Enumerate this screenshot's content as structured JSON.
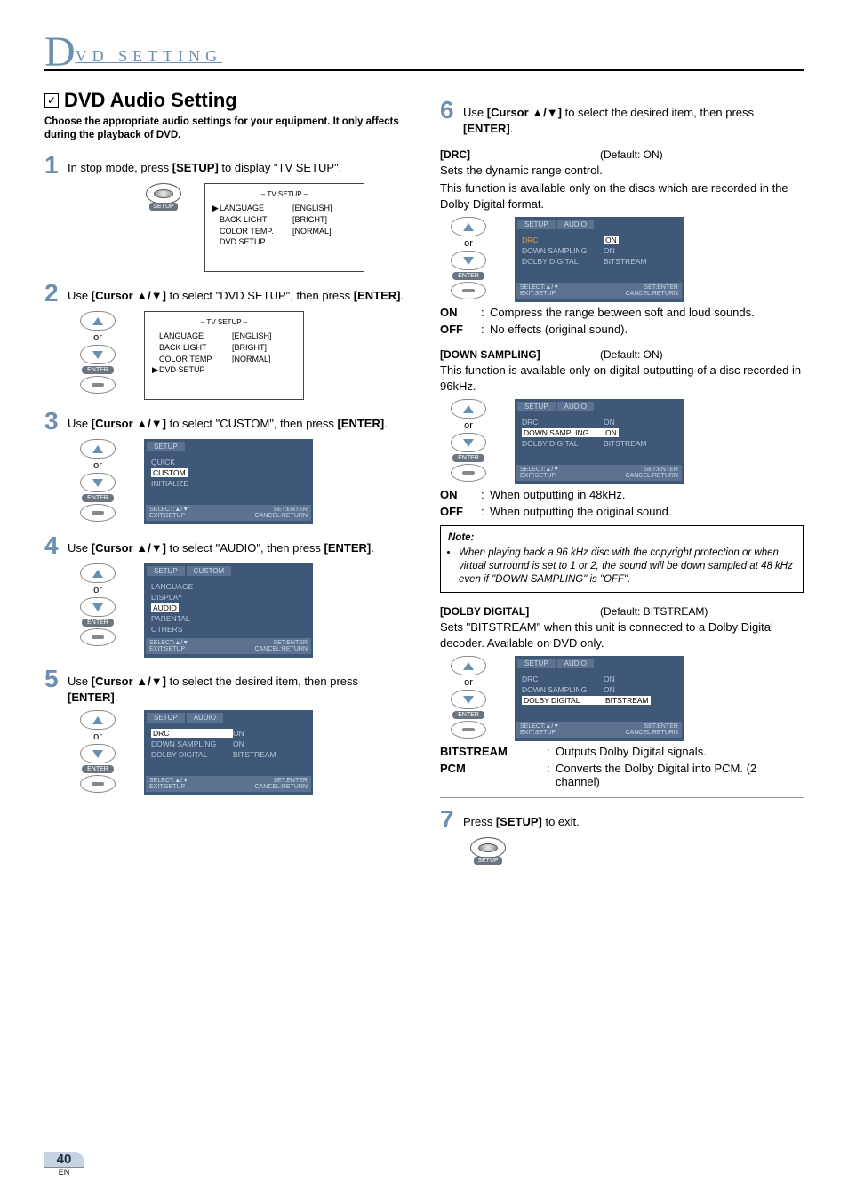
{
  "header": {
    "big_letter": "D",
    "rest": "VD  SETTING"
  },
  "left": {
    "checkbox_glyph": "✓",
    "title": "DVD Audio Setting",
    "subtitle": "Choose the appropriate audio settings for your equipment. It only affects during the playback of DVD.",
    "step1": {
      "n": "1",
      "text_a": "In stop mode, press ",
      "text_b": "[SETUP]",
      "text_c": " to display \"TV SETUP\".",
      "setup_label": "SETUP",
      "screen_title": "–  TV SETUP  –",
      "rows": [
        {
          "ptr": "▶",
          "lbl": "LANGUAGE",
          "val": "[ENGLISH]"
        },
        {
          "ptr": "",
          "lbl": "BACK LIGHT",
          "val": "[BRIGHT]"
        },
        {
          "ptr": "",
          "lbl": "COLOR TEMP.",
          "val": "[NORMAL]"
        },
        {
          "ptr": "",
          "lbl": "DVD SETUP",
          "val": ""
        }
      ]
    },
    "step2": {
      "n": "2",
      "text_a": "Use ",
      "text_b": "[Cursor ▲/▼]",
      "text_c": " to select \"DVD SETUP\", then press ",
      "text_d": "[ENTER]",
      "text_e": ".",
      "or": "or",
      "enter": "ENTER",
      "screen_title": "–  TV SETUP  –",
      "rows": [
        {
          "ptr": "",
          "lbl": "LANGUAGE",
          "val": "[ENGLISH]"
        },
        {
          "ptr": "",
          "lbl": "BACK LIGHT",
          "val": "[BRIGHT]"
        },
        {
          "ptr": "",
          "lbl": "COLOR TEMP.",
          "val": "[NORMAL]"
        },
        {
          "ptr": "▶",
          "lbl": "DVD SETUP",
          "val": ""
        }
      ]
    },
    "step3": {
      "n": "3",
      "text_a": "Use ",
      "text_b": "[Cursor ▲/▼]",
      "text_c": " to select \"CUSTOM\", then press ",
      "text_d": "[ENTER]",
      "text_e": ".",
      "tab": "SETUP",
      "items": [
        "QUICK",
        "CUSTOM",
        "INITIALIZE"
      ],
      "sel_index": 1,
      "footer_l1": "SELECT:▲/▼",
      "footer_r1": "SET:ENTER",
      "footer_l2": "EXIT:SETUP",
      "footer_r2": "CANCEL:RETURN"
    },
    "step4": {
      "n": "4",
      "text_a": "Use ",
      "text_b": "[Cursor ▲/▼]",
      "text_c": " to select \"AUDIO\", then press ",
      "text_d": "[ENTER]",
      "text_e": ".",
      "tab1": "SETUP",
      "tab2": "CUSTOM",
      "items": [
        "LANGUAGE",
        "DISPLAY",
        "AUDIO",
        "PARENTAL",
        "OTHERS"
      ],
      "sel_index": 2
    },
    "step5": {
      "n": "5",
      "text_a": "Use ",
      "text_b": "[Cursor ▲/▼]",
      "text_c": " to select the desired item, then press ",
      "text_d": "[ENTER]",
      "text_e": ".",
      "tab1": "SETUP",
      "tab2": "AUDIO",
      "items": [
        {
          "lbl": "DRC",
          "val": "ON",
          "sel": true,
          "hl": false
        },
        {
          "lbl": "DOWN SAMPLING",
          "val": "ON",
          "sel": false,
          "hl": false
        },
        {
          "lbl": "DOLBY DIGITAL",
          "val": "BITSTREAM",
          "sel": false,
          "hl": false
        }
      ]
    }
  },
  "right": {
    "step6": {
      "n": "6",
      "text_a": "Use ",
      "text_b": "[Cursor ▲/▼]",
      "text_c": " to select the desired item, then press ",
      "text_d": "[ENTER]",
      "text_e": "."
    },
    "drc": {
      "name": "[DRC]",
      "default": "(Default: ON)",
      "line1": "Sets the dynamic range control.",
      "line2": "This function is available only on the discs which are recorded in the Dolby Digital format.",
      "items": [
        {
          "lbl": "DRC",
          "val": "ON",
          "sel": false,
          "hl": true,
          "valsel": true
        },
        {
          "lbl": "DOWN SAMPLING",
          "val": "ON",
          "sel": false,
          "hl": false
        },
        {
          "lbl": "DOLBY DIGITAL",
          "val": "BITSTREAM",
          "sel": false,
          "hl": false
        }
      ],
      "on_lbl": "ON",
      "on_desc": "Compress the range between soft and loud sounds.",
      "off_lbl": "OFF",
      "off_desc": "No effects (original sound)."
    },
    "ds": {
      "name": "[DOWN SAMPLING]",
      "default": "(Default: ON)",
      "line1": "This function is available only on digital outputting of a disc recorded in 96kHz.",
      "items": [
        {
          "lbl": "DRC",
          "val": "ON",
          "sel": false,
          "hl": false
        },
        {
          "lbl": "DOWN SAMPLING",
          "val": "ON",
          "sel": true,
          "hl": false,
          "valsel": true
        },
        {
          "lbl": "DOLBY DIGITAL",
          "val": "BITSTREAM",
          "sel": false,
          "hl": false
        }
      ],
      "on_lbl": "ON",
      "on_desc": "When outputting in 48kHz.",
      "off_lbl": "OFF",
      "off_desc": "When outputting the original sound.",
      "note_title": "Note:",
      "note_text": "When playing back a 96 kHz disc with the copyright protection or when virtual surround is set to 1 or 2, the sound will be down sampled at 48 kHz even if \"DOWN SAMPLING\" is \"OFF\"."
    },
    "dd": {
      "name": "[DOLBY DIGITAL]",
      "default": "(Default: BITSTREAM)",
      "line1": "Sets \"BITSTREAM\" when this unit is connected to a Dolby Digital decoder. Available on DVD only.",
      "items": [
        {
          "lbl": "DRC",
          "val": "ON",
          "sel": false,
          "hl": false
        },
        {
          "lbl": "DOWN SAMPLING",
          "val": "ON",
          "sel": false,
          "hl": false
        },
        {
          "lbl": "DOLBY DIGITAL",
          "val": "BITSTREAM",
          "sel": true,
          "hl": false,
          "valsel": true
        }
      ],
      "bit_lbl": "BITSTREAM",
      "bit_desc": "Outputs Dolby Digital signals.",
      "pcm_lbl": "PCM",
      "pcm_desc": "Converts the Dolby Digital into PCM. (2 channel)"
    },
    "step7": {
      "n": "7",
      "text_a": "Press ",
      "text_b": "[SETUP]",
      "text_c": " to exit.",
      "setup_label": "SETUP"
    }
  },
  "common": {
    "or": "or",
    "enter": "ENTER",
    "tab_setup": "SETUP",
    "tab_audio": "AUDIO",
    "footer_l1": "SELECT:▲/▼",
    "footer_r1": "SET:ENTER",
    "footer_l2": "EXIT:SETUP",
    "footer_r2": "CANCEL:RETURN"
  },
  "page": {
    "num": "40",
    "sub": "EN"
  },
  "colors": {
    "accent": "#6b8fb0",
    "menu_bg": "#405877",
    "menu_light": "#5b7390",
    "menu_text": "#b7c6da",
    "grey_pill": "#6b7580",
    "highlight": "#e39b4a"
  }
}
